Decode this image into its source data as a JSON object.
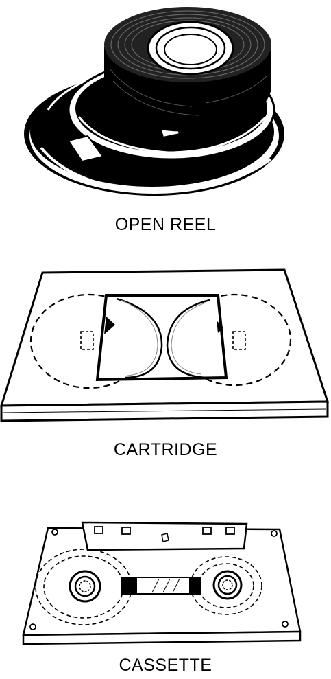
{
  "figures": [
    {
      "label": "OPEN REEL",
      "icon": "open-reel-icon"
    },
    {
      "label": "CARTRIDGE",
      "icon": "cartridge-icon"
    },
    {
      "label": "CASSETTE",
      "icon": "cassette-icon"
    }
  ]
}
